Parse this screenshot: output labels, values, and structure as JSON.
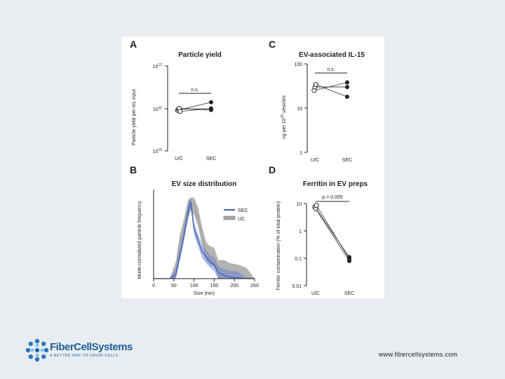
{
  "brand": {
    "name": "FiberCellSystems",
    "tagline": "A BETTER WAY TO GROW CELLS",
    "website": "www.fibercellsystems.com",
    "colors": {
      "primary": "#1e5f97",
      "accent": "#3a8fd0"
    }
  },
  "chart_data": [
    {
      "panel": "A",
      "type": "scatter",
      "title": "Particle yield",
      "xlabel": "",
      "ylabel": "Particle yield per mL input",
      "categories": [
        "U/C",
        "SEC"
      ],
      "yscale": "log",
      "ylim": [
        10000000000.0,
        1000000000000.0
      ],
      "yticks": [
        "10^12",
        "10^11",
        "10^10"
      ],
      "yticklabels": [
        {
          "base": "10",
          "exp": "12",
          "value": 1000000000000.0
        },
        {
          "base": "10",
          "exp": "11",
          "value": 100000000000.0
        },
        {
          "base": "10",
          "exp": "10",
          "value": 10000000000.0
        }
      ],
      "annotation": "n.s.",
      "pairs": [
        [
          90000000000.0,
          140000000000.0
        ],
        [
          96000000000.0,
          98000000000.0
        ],
        [
          100000000000.0,
          92000000000.0
        ],
        [
          85000000000.0,
          100000000000.0
        ]
      ]
    },
    {
      "panel": "B",
      "type": "area",
      "title": "EV size distribution",
      "xlabel": "Size (nm)",
      "ylabel": "Mode-normalized particle frequency",
      "xlim": [
        0,
        250
      ],
      "xticks": [
        "0",
        "50",
        "100",
        "150",
        "200",
        "250"
      ],
      "legend_position": "top-right",
      "series": [
        {
          "name": "SEC",
          "color": "#3f5fb5",
          "x": [
            0,
            40,
            55,
            65,
            75,
            85,
            92,
            100,
            110,
            120,
            130,
            140,
            150,
            160,
            175,
            190,
            210,
            230,
            250
          ],
          "values": [
            0,
            0,
            0.05,
            0.3,
            0.55,
            0.85,
            1.0,
            0.65,
            0.5,
            0.35,
            0.28,
            0.22,
            0.18,
            0.08,
            0.04,
            0.02,
            0.01,
            0,
            0
          ]
        },
        {
          "name": "UC",
          "color": "#999999",
          "x": [
            0,
            40,
            55,
            65,
            75,
            85,
            92,
            100,
            110,
            120,
            130,
            140,
            150,
            160,
            175,
            190,
            210,
            230,
            250
          ],
          "values": [
            0,
            0,
            0.1,
            0.45,
            0.65,
            0.9,
            1.0,
            0.95,
            0.8,
            0.55,
            0.35,
            0.3,
            0.28,
            0.12,
            0.12,
            0.08,
            0.06,
            0.02,
            0
          ]
        }
      ]
    },
    {
      "panel": "C",
      "type": "scatter",
      "title": "EV-associated IL-15",
      "xlabel": "",
      "ylabel": "ng per 10^10 vesicles",
      "ylabel_parts": {
        "pre": "ng per 10",
        "sup": "10",
        "post": " vesicles"
      },
      "categories": [
        "U/C",
        "SEC"
      ],
      "yscale": "log",
      "ylim": [
        1,
        100
      ],
      "yticks": [
        "100",
        "10",
        "1"
      ],
      "annotation": "n.s.",
      "pairs": [
        [
          25,
          38
        ],
        [
          30,
          30
        ],
        [
          34,
          18
        ]
      ]
    },
    {
      "panel": "D",
      "type": "scatter",
      "title": "Ferritin in EV preps",
      "xlabel": "",
      "ylabel": "Ferritin contamination (% of total protein)",
      "categories": [
        "U/C",
        "SEC"
      ],
      "yscale": "log",
      "ylim": [
        0.01,
        10
      ],
      "yticks": [
        "10",
        "1",
        "0.1",
        "0.01"
      ],
      "annotation": "p = 0.005",
      "pairs": [
        [
          7.5,
          0.11
        ],
        [
          6.5,
          0.08
        ],
        [
          8.5,
          0.095
        ]
      ]
    }
  ]
}
